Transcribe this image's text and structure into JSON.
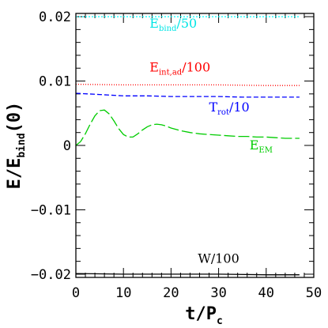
{
  "chart_data": {
    "type": "line",
    "xlabel": "t/P",
    "xlabel_sub": "c",
    "ylabel": "E/E",
    "ylabel_sub": "bind",
    "ylabel_suffix": "(0)",
    "xlim": [
      0,
      50
    ],
    "ylim": [
      -0.0205,
      0.0205
    ],
    "x_ticks": [
      0,
      10,
      20,
      30,
      40,
      50
    ],
    "y_ticks": [
      -0.02,
      -0.01,
      0,
      0.01,
      0.02
    ],
    "y_tick_labels": [
      "−0.02",
      "−0.01",
      "0",
      "0.01",
      "0.02"
    ],
    "x_minor_step": 2,
    "y_minor_step": 0.002,
    "grid": false,
    "series": [
      {
        "name": "E_bind/50",
        "label_main": "E",
        "label_sub": "bind",
        "label_suffix": "/50",
        "label_at": [
          15.5,
          0.0183
        ],
        "color": "#00ffff",
        "dash": "2,2",
        "x": [
          0,
          47
        ],
        "y": [
          0.02,
          0.02
        ]
      },
      {
        "name": "E_int,ad/100",
        "label_main": "E",
        "label_sub": "int,ad",
        "label_suffix": "/100",
        "label_at": [
          15.5,
          0.0115
        ],
        "color": "#ff0000",
        "dash": "1,2",
        "x": [
          0,
          10,
          20,
          30,
          40,
          47
        ],
        "y": [
          0.0095,
          0.0094,
          0.0094,
          0.0094,
          0.0093,
          0.0093
        ]
      },
      {
        "name": "T_rot/10",
        "label_main": "T",
        "label_sub": "rot",
        "label_suffix": "/10",
        "label_at": [
          36.5,
          0.0053
        ],
        "color": "#0000ff",
        "dash": "6,3",
        "x": [
          0,
          5,
          10,
          15,
          20,
          25,
          30,
          35,
          40,
          47
        ],
        "y": [
          0.0081,
          0.0079,
          0.0077,
          0.0077,
          0.0076,
          0.0076,
          0.0076,
          0.0075,
          0.0075,
          0.0075
        ],
        "align": "end"
      },
      {
        "name": "E_EM",
        "label_main": "E",
        "label_sub": "EM",
        "label_suffix": "",
        "label_at": [
          36.5,
          -0.0006
        ],
        "color": "#00cc00",
        "dash": "14,4",
        "x": [
          0,
          1,
          2,
          3,
          4,
          5,
          6,
          7,
          8,
          9,
          10,
          11,
          12,
          13,
          14,
          15,
          16,
          17,
          18,
          19,
          20,
          22,
          24,
          26,
          28,
          30,
          32,
          34,
          36,
          38,
          40,
          42,
          44,
          46,
          47
        ],
        "y": [
          0.0,
          0.0006,
          0.0018,
          0.0033,
          0.0046,
          0.0054,
          0.0055,
          0.0049,
          0.0038,
          0.0026,
          0.0017,
          0.0013,
          0.0013,
          0.0018,
          0.0024,
          0.0029,
          0.0032,
          0.0033,
          0.0032,
          0.003,
          0.0027,
          0.0023,
          0.002,
          0.0018,
          0.0017,
          0.0016,
          0.0015,
          0.0014,
          0.0014,
          0.0013,
          0.0013,
          0.0012,
          0.0011,
          0.0011,
          0.0011
        ]
      },
      {
        "name": "W/100",
        "label_main": "W/100",
        "label_sub": "",
        "label_suffix": "",
        "label_at": [
          30,
          -0.0182
        ],
        "color": "#000000",
        "dash": "",
        "align": "middle",
        "x": [
          0,
          10,
          20,
          30,
          40,
          47
        ],
        "y": [
          -0.0199,
          -0.02,
          -0.02,
          -0.02,
          -0.0201,
          -0.0201
        ]
      }
    ]
  }
}
